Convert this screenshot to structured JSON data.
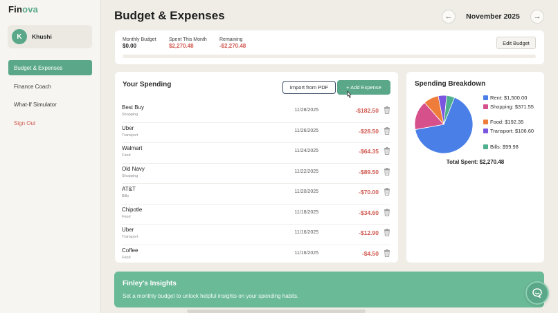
{
  "app": {
    "logo_part1": "Fin",
    "logo_part2": "ova"
  },
  "user": {
    "initial": "K",
    "name": "Khushi"
  },
  "sidebar": {
    "items": [
      {
        "label": "Budget & Expenses"
      },
      {
        "label": "Finance Coach"
      },
      {
        "label": "What-If Simulator"
      },
      {
        "label": "Sign Out"
      }
    ]
  },
  "header": {
    "title": "Budget & Expenses",
    "month": "November 2025",
    "prev_icon": "←",
    "next_icon": "→"
  },
  "budget": {
    "monthly_label": "Monthly Budget",
    "monthly_value": "$0.00",
    "spent_label": "Spent This Month",
    "spent_value": "$2,270.48",
    "remaining_label": "Remaining",
    "remaining_value": "-$2,270.48",
    "edit_label": "Edit Budget",
    "progress_fraction": 0
  },
  "spending": {
    "title": "Your Spending",
    "import_label": "Import from PDF",
    "add_label": "+ Add Expense",
    "rows": [
      {
        "name": "Best Buy",
        "category": "Shopping",
        "date": "11/28/2025",
        "amount": "-$182.50"
      },
      {
        "name": "Uber",
        "category": "Transport",
        "date": "11/26/2025",
        "amount": "-$28.50"
      },
      {
        "name": "Walmart",
        "category": "Food",
        "date": "11/24/2025",
        "amount": "-$64.35"
      },
      {
        "name": "Old Navy",
        "category": "Shopping",
        "date": "11/22/2025",
        "amount": "-$89.50"
      },
      {
        "name": "AT&T",
        "category": "Bills",
        "date": "11/20/2025",
        "amount": "-$70.00"
      },
      {
        "name": "Chipotle",
        "category": "Food",
        "date": "11/18/2025",
        "amount": "-$34.60"
      },
      {
        "name": "Uber",
        "category": "Transport",
        "date": "11/16/2025",
        "amount": "-$12.90"
      },
      {
        "name": "Coffee",
        "category": "Food",
        "date": "11/16/2025",
        "amount": "-$4.50"
      }
    ]
  },
  "breakdown": {
    "title": "Spending Breakdown",
    "total": "Total Spent: $2,270.48",
    "legend": [
      {
        "label": "Rent: $1,500.00",
        "value": 1500.0,
        "color": "#4a7fe8"
      },
      {
        "label": "Shopping: $371.55",
        "value": 371.55,
        "color": "#d6508c"
      },
      {
        "label": "Food: $192.35",
        "value": 192.35,
        "color": "#ee7d3b"
      },
      {
        "label": "Transport: $106.60",
        "value": 106.6,
        "color": "#7a55e0"
      },
      {
        "label": "Bills: $99.98",
        "value": 99.98,
        "color": "#4fb08f"
      }
    ]
  },
  "insights": {
    "title": "Finley's Insights",
    "text": "Set a monthly budget to unlock helpful insights on your spending habits."
  },
  "colors": {
    "accent": "#5aa889",
    "negative": "#d0584f"
  }
}
